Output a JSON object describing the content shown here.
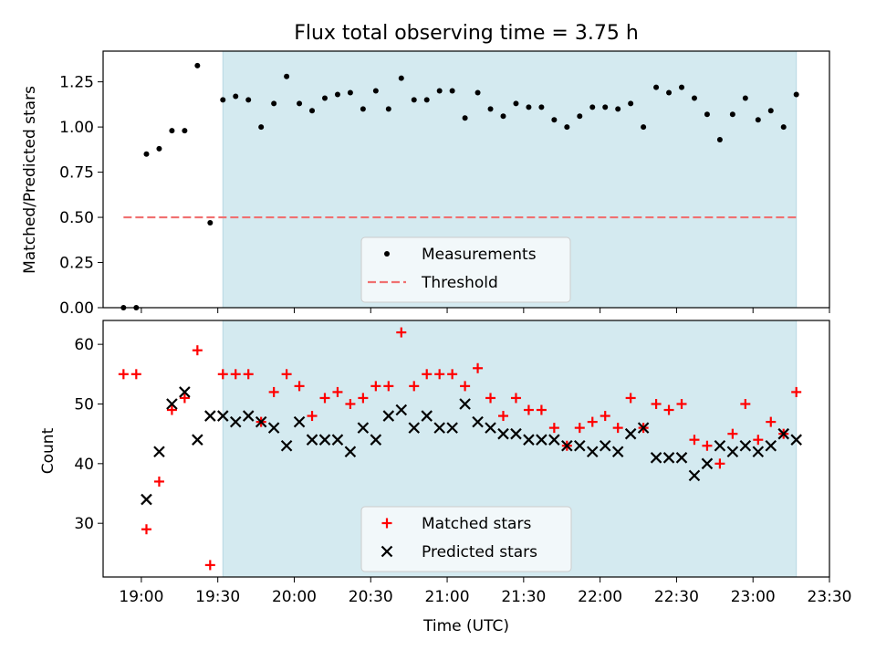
{
  "chart_data": [
    {
      "type": "scatter",
      "title": "Flux total observing time = 3.75 h",
      "ylabel": "Matched/Predicted stars",
      "xlabel": "",
      "ylim": [
        0,
        1.42
      ],
      "yticks": [
        "0.00",
        "0.25",
        "0.50",
        "0.75",
        "1.00",
        "1.25"
      ],
      "ytick_values": [
        0,
        0.25,
        0.5,
        0.75,
        1.0,
        1.25
      ],
      "legend_position": "lower-center",
      "highlight_region": {
        "start": "19:32",
        "end": "23:17",
        "color": "#d4eaf0"
      },
      "series": [
        {
          "name": "Measurements",
          "marker": "dot",
          "color": "#000000",
          "x": [
            "18:53",
            "18:58",
            "19:02",
            "19:07",
            "19:12",
            "19:17",
            "19:22",
            "19:27",
            "19:32",
            "19:37",
            "19:42",
            "19:47",
            "19:52",
            "19:57",
            "20:02",
            "20:07",
            "20:12",
            "20:17",
            "20:22",
            "20:27",
            "20:32",
            "20:37",
            "20:42",
            "20:47",
            "20:52",
            "20:57",
            "21:02",
            "21:07",
            "21:12",
            "21:17",
            "21:22",
            "21:27",
            "21:32",
            "21:37",
            "21:42",
            "21:47",
            "21:52",
            "21:57",
            "22:02",
            "22:07",
            "22:12",
            "22:17",
            "22:22",
            "22:27",
            "22:32",
            "22:37",
            "22:42",
            "22:47",
            "22:52",
            "22:57",
            "23:02",
            "23:07",
            "23:12",
            "23:17"
          ],
          "y": [
            0.0,
            0.0,
            0.85,
            0.88,
            0.98,
            0.98,
            1.34,
            0.47,
            1.15,
            1.17,
            1.15,
            1.0,
            1.13,
            1.28,
            1.13,
            1.09,
            1.16,
            1.18,
            1.19,
            1.1,
            1.2,
            1.1,
            1.27,
            1.15,
            1.15,
            1.2,
            1.2,
            1.05,
            1.19,
            1.1,
            1.06,
            1.13,
            1.11,
            1.11,
            1.04,
            1.0,
            1.06,
            1.11,
            1.11,
            1.1,
            1.13,
            1.0,
            1.22,
            1.19,
            1.22,
            1.16,
            1.07,
            0.93,
            1.07,
            1.16,
            1.04,
            1.09,
            1.0,
            1.18
          ]
        },
        {
          "name": "Threshold",
          "marker": "dashed-line",
          "color": "#f07070",
          "x": [
            "18:53",
            "23:17"
          ],
          "y": [
            0.5,
            0.5
          ]
        }
      ]
    },
    {
      "type": "scatter",
      "title": "",
      "ylabel": "Count",
      "xlabel": "Time (UTC)",
      "ylim": [
        21,
        64
      ],
      "yticks": [
        "30",
        "40",
        "50",
        "60"
      ],
      "ytick_values": [
        30,
        40,
        50,
        60
      ],
      "xlim": [
        "18:45",
        "23:30"
      ],
      "xticks": [
        "19:00",
        "19:30",
        "20:00",
        "20:30",
        "21:00",
        "21:30",
        "22:00",
        "22:30",
        "23:00",
        "23:30"
      ],
      "legend_position": "lower-center",
      "highlight_region": {
        "start": "19:32",
        "end": "23:17",
        "color": "#d4eaf0"
      },
      "series": [
        {
          "name": "Matched stars",
          "marker": "plus",
          "color": "#ff0000",
          "x": [
            "18:53",
            "18:58",
            "19:02",
            "19:07",
            "19:12",
            "19:17",
            "19:22",
            "19:27",
            "19:32",
            "19:37",
            "19:42",
            "19:47",
            "19:52",
            "19:57",
            "20:02",
            "20:07",
            "20:12",
            "20:17",
            "20:22",
            "20:27",
            "20:32",
            "20:37",
            "20:42",
            "20:47",
            "20:52",
            "20:57",
            "21:02",
            "21:07",
            "21:12",
            "21:17",
            "21:22",
            "21:27",
            "21:32",
            "21:37",
            "21:42",
            "21:47",
            "21:52",
            "21:57",
            "22:02",
            "22:07",
            "22:12",
            "22:17",
            "22:22",
            "22:27",
            "22:32",
            "22:37",
            "22:42",
            "22:47",
            "22:52",
            "22:57",
            "23:02",
            "23:07",
            "23:12",
            "23:17"
          ],
          "y": [
            55,
            55,
            29,
            37,
            49,
            51,
            59,
            23,
            55,
            55,
            55,
            47,
            52,
            55,
            53,
            48,
            51,
            52,
            50,
            51,
            53,
            53,
            62,
            53,
            55,
            55,
            55,
            53,
            56,
            51,
            48,
            51,
            49,
            49,
            46,
            43,
            46,
            47,
            48,
            46,
            51,
            46,
            50,
            49,
            50,
            44,
            43,
            40,
            45,
            50,
            44,
            47,
            45,
            52
          ]
        },
        {
          "name": "Predicted stars",
          "marker": "x",
          "color": "#000000",
          "x": [
            "19:02",
            "19:07",
            "19:12",
            "19:17",
            "19:22",
            "19:27",
            "19:32",
            "19:37",
            "19:42",
            "19:47",
            "19:52",
            "19:57",
            "20:02",
            "20:07",
            "20:12",
            "20:17",
            "20:22",
            "20:27",
            "20:32",
            "20:37",
            "20:42",
            "20:47",
            "20:52",
            "20:57",
            "21:02",
            "21:07",
            "21:12",
            "21:17",
            "21:22",
            "21:27",
            "21:32",
            "21:37",
            "21:42",
            "21:47",
            "21:52",
            "21:57",
            "22:02",
            "22:07",
            "22:12",
            "22:17",
            "22:22",
            "22:27",
            "22:32",
            "22:37",
            "22:42",
            "22:47",
            "22:52",
            "22:57",
            "23:02",
            "23:07",
            "23:12",
            "23:17"
          ],
          "y": [
            34,
            42,
            50,
            52,
            44,
            48,
            48,
            47,
            48,
            47,
            46,
            43,
            47,
            44,
            44,
            44,
            42,
            46,
            44,
            48,
            49,
            46,
            48,
            46,
            46,
            50,
            47,
            46,
            45,
            45,
            44,
            44,
            44,
            43,
            43,
            42,
            43,
            42,
            45,
            46,
            41,
            41,
            41,
            38,
            40,
            43,
            42,
            43,
            42,
            43,
            45,
            44
          ]
        }
      ]
    }
  ]
}
